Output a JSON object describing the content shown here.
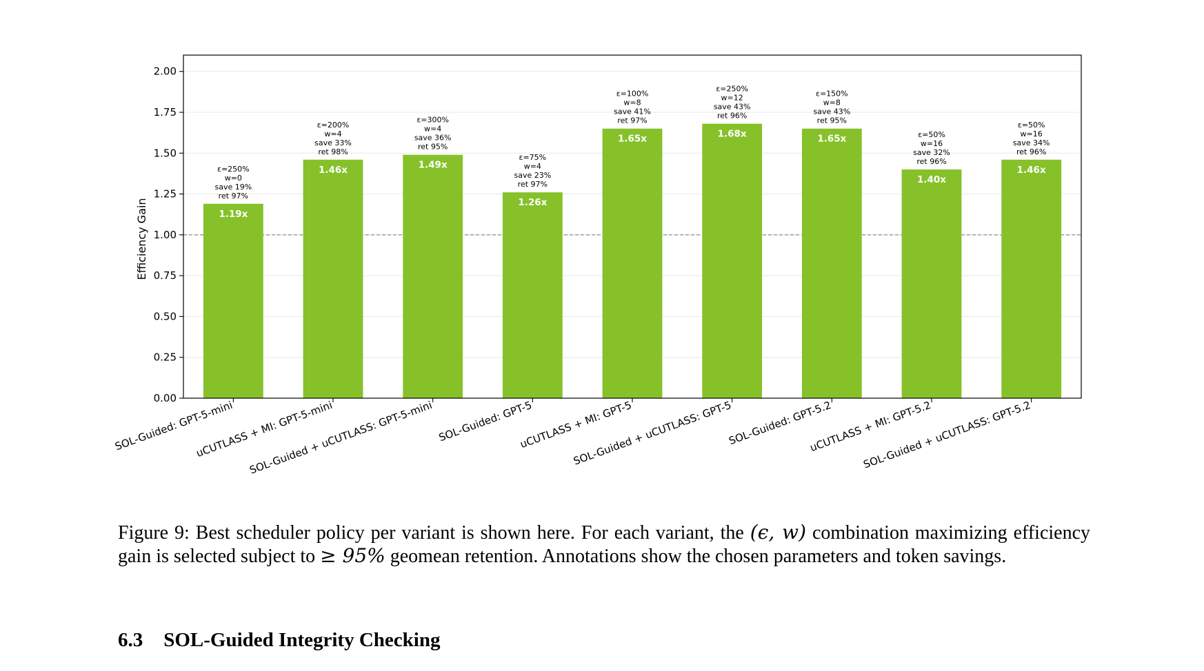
{
  "chart_data": {
    "type": "bar",
    "ylabel": "Efficiency Gain",
    "ylim": [
      0,
      2.1
    ],
    "yticks": [
      "0.00",
      "0.25",
      "0.50",
      "0.75",
      "1.00",
      "1.25",
      "1.50",
      "1.75",
      "2.00"
    ],
    "reference_line": 1.0,
    "bar_color": "#86c12a",
    "grid": "horizontal, light",
    "categories": [
      "SOL-Guided: GPT-5-mini",
      "uCUTLASS + MI: GPT-5-mini",
      "SOL-Guided + uCUTLASS: GPT-5-mini",
      "SOL-Guided: GPT-5",
      "uCUTLASS + MI: GPT-5",
      "SOL-Guided + uCUTLASS: GPT-5",
      "SOL-Guided: GPT-5.2",
      "uCUTLASS + MI: GPT-5.2",
      "SOL-Guided + uCUTLASS: GPT-5.2"
    ],
    "values": [
      1.19,
      1.46,
      1.49,
      1.26,
      1.65,
      1.68,
      1.65,
      1.4,
      1.46
    ],
    "bar_labels": [
      "1.19x",
      "1.46x",
      "1.49x",
      "1.26x",
      "1.65x",
      "1.68x",
      "1.65x",
      "1.40x",
      "1.46x"
    ],
    "annotations": [
      [
        "ε=250%",
        "w=0",
        "save 19%",
        "ret 97%"
      ],
      [
        "ε=200%",
        "w=4",
        "save 33%",
        "ret 98%"
      ],
      [
        "ε=300%",
        "w=4",
        "save 36%",
        "ret 95%"
      ],
      [
        "ε=75%",
        "w=4",
        "save 23%",
        "ret 97%"
      ],
      [
        "ε=100%",
        "w=8",
        "save 41%",
        "ret 97%"
      ],
      [
        "ε=250%",
        "w=12",
        "save 43%",
        "ret 96%"
      ],
      [
        "ε=150%",
        "w=8",
        "save 43%",
        "ret 95%"
      ],
      [
        "ε=50%",
        "w=16",
        "save 32%",
        "ret 96%"
      ],
      [
        "ε=50%",
        "w=16",
        "save 34%",
        "ret 96%"
      ]
    ]
  },
  "caption": {
    "part1": "Figure 9: Best scheduler policy per variant is shown here. For each variant, the ",
    "math1": "(ϵ, w)",
    "part2": " combination maximizing efficiency gain is selected subject to ",
    "math2": "≥ 95%",
    "part3": " geomean retention. Annotations show the chosen parameters and token savings."
  },
  "section": {
    "number": "6.3",
    "title": "SOL-Guided Integrity Checking"
  }
}
